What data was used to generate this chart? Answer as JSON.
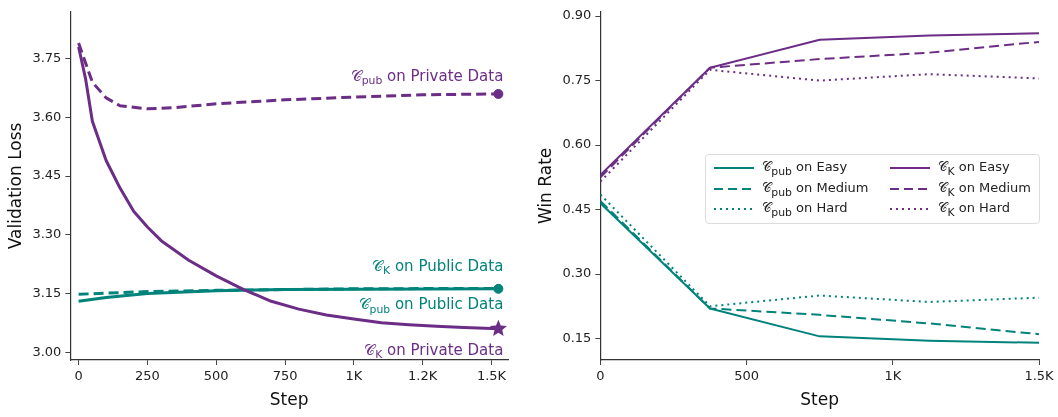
{
  "chart_data": [
    {
      "type": "line",
      "xlabel": "Step",
      "ylabel": "Validation Loss",
      "xlim": [
        -30,
        1560
      ],
      "xticks": [
        0,
        250,
        500,
        750,
        {
          "value": 1000,
          "label": "1K"
        },
        {
          "value": 1250,
          "label": "1.2K"
        },
        {
          "value": 1500,
          "label": "1.5K"
        }
      ],
      "ylim": [
        2.98,
        3.87
      ],
      "yticks": [
        {
          "value": 3,
          "label": "3.00"
        },
        {
          "value": 3.15,
          "label": "3.15"
        },
        {
          "value": 3.3,
          "label": "3.30"
        },
        {
          "value": 3.45,
          "label": "3.45"
        },
        {
          "value": 3.6,
          "label": "3.60"
        },
        {
          "value": 3.75,
          "label": "3.75"
        }
      ],
      "series": [
        {
          "name": "𝒞$_{K}$ on Private Data",
          "color": "#6b2d86",
          "line_style": "solid",
          "x": [
            0,
            25,
            50,
            100,
            150,
            200,
            250,
            300,
            400,
            500,
            600,
            700,
            800,
            900,
            1000,
            1100,
            1200,
            1300,
            1400,
            1525
          ],
          "values": [
            3.78,
            3.7,
            3.59,
            3.49,
            3.42,
            3.36,
            3.32,
            3.285,
            3.235,
            3.195,
            3.16,
            3.13,
            3.11,
            3.095,
            3.085,
            3.075,
            3.07,
            3.066,
            3.063,
            3.06
          ]
        },
        {
          "name": "𝒞$_{pub}$ on Private Data",
          "color": "#6b2d86",
          "line_style": "dashed",
          "x": [
            0,
            25,
            50,
            100,
            150,
            250,
            350,
            500,
            750,
            1000,
            1250,
            1525
          ],
          "values": [
            3.79,
            3.74,
            3.69,
            3.65,
            3.63,
            3.622,
            3.625,
            3.635,
            3.645,
            3.652,
            3.658,
            3.66
          ]
        },
        {
          "name": "𝒞$_{K}$ on Public Data",
          "color": "#00837b",
          "line_style": "solid",
          "x": [
            0,
            100,
            250,
            500,
            750,
            1000,
            1525
          ],
          "values": [
            3.13,
            3.14,
            3.15,
            3.157,
            3.16,
            3.161,
            3.162
          ]
        },
        {
          "name": "𝒞$_{pub}$ on Public Data",
          "color": "#00837b",
          "line_style": "dashed",
          "x": [
            0,
            250,
            500,
            1000,
            1525
          ],
          "values": [
            3.148,
            3.155,
            3.158,
            3.162,
            3.163
          ]
        },
        {
          "type": "scatter",
          "color": "#6b2d86",
          "marker": "star",
          "x": [
            1525
          ],
          "values": [
            3.06
          ]
        },
        {
          "type": "scatter",
          "color": "#6b2d86",
          "marker": "circle",
          "x": [
            1525
          ],
          "values": [
            3.66
          ]
        },
        {
          "type": "scatter",
          "color": "#00837b",
          "marker": "circle",
          "x": [
            1525
          ],
          "values": [
            3.162
          ]
        }
      ]
    },
    {
      "type": "line",
      "xlabel": "Step",
      "ylabel": "Win Rate",
      "legend": "right",
      "x": [
        0,
        375,
        750,
        1125,
        1500
      ],
      "xlim": [
        0,
        1500
      ],
      "xticks": [
        0,
        500,
        {
          "value": 1000,
          "label": "1K"
        },
        {
          "value": 1500,
          "label": "1.5K"
        }
      ],
      "ylim": [
        0.1,
        0.91
      ],
      "yticks": [
        {
          "value": 0.15,
          "label": "0.15"
        },
        {
          "value": 0.3,
          "label": "0.30"
        },
        {
          "value": 0.45,
          "label": "0.45"
        },
        {
          "value": 0.6,
          "label": "0.60"
        },
        {
          "value": 0.75,
          "label": "0.75"
        },
        {
          "value": 0.9,
          "label": "0.90"
        }
      ],
      "series": [
        {
          "name": "𝒞$_{pub}$ on Easy",
          "color": "#00837b",
          "line_style": "solid",
          "values": [
            0.465,
            0.22,
            0.155,
            0.145,
            0.14
          ]
        },
        {
          "name": "𝒞$_{pub}$ on Medium",
          "color": "#00837b",
          "line_style": "dashed",
          "values": [
            0.47,
            0.22,
            0.205,
            0.185,
            0.16
          ]
        },
        {
          "name": "𝒞$_{pub}$ on Hard",
          "color": "#00837b",
          "line_style": "dotted",
          "values": [
            0.485,
            0.225,
            0.25,
            0.235,
            0.245
          ]
        },
        {
          "name": "𝒞$_{K}$ on Easy",
          "color": "#6b2d86",
          "line_style": "solid",
          "values": [
            0.53,
            0.78,
            0.845,
            0.855,
            0.86
          ]
        },
        {
          "name": "𝒞$_{K}$ on Medium",
          "color": "#6b2d86",
          "line_style": "dashed",
          "values": [
            0.525,
            0.78,
            0.8,
            0.815,
            0.84
          ]
        },
        {
          "name": "𝒞$_{K}$ on Hard",
          "color": "#6b2d86",
          "line_style": "dotted",
          "values": [
            0.515,
            0.775,
            0.75,
            0.765,
            0.755
          ]
        }
      ]
    }
  ]
}
